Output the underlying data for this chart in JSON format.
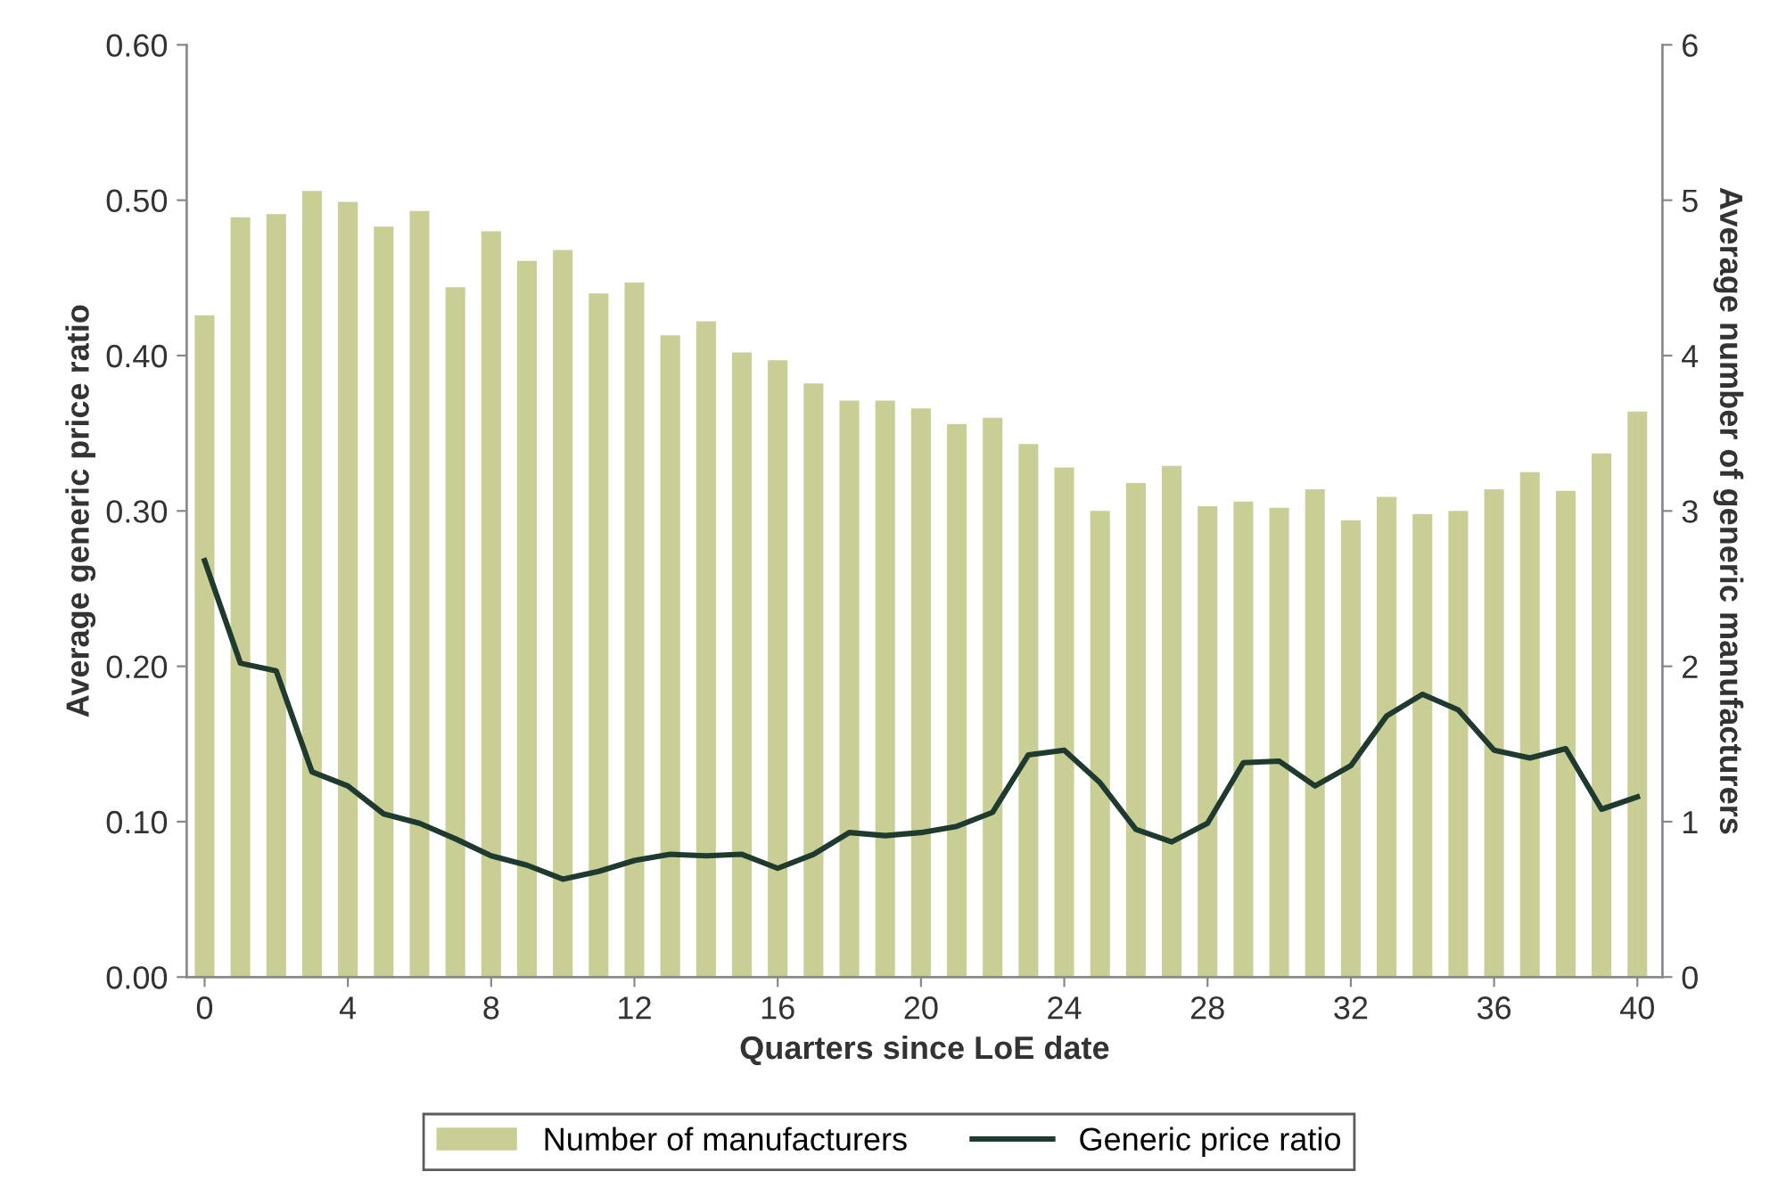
{
  "chart_data": {
    "type": "bar",
    "xlabel": "Quarters since LoE date",
    "ylabel": "Average generic price ratio",
    "y2label": "Average number of generic manufacturers",
    "x": [
      0,
      1,
      2,
      3,
      4,
      5,
      6,
      7,
      8,
      9,
      10,
      11,
      12,
      13,
      14,
      15,
      16,
      17,
      18,
      19,
      20,
      21,
      22,
      23,
      24,
      25,
      26,
      27,
      28,
      29,
      30,
      31,
      32,
      33,
      34,
      35,
      36,
      37,
      38,
      39,
      40
    ],
    "series": [
      {
        "name": "Number of manufacturers",
        "axis": "y2",
        "color": "#c9cf94",
        "values": [
          4.26,
          4.89,
          4.91,
          5.06,
          4.99,
          4.83,
          4.93,
          4.44,
          4.8,
          4.61,
          4.68,
          4.4,
          4.47,
          4.13,
          4.22,
          4.02,
          3.97,
          3.82,
          3.71,
          3.71,
          3.66,
          3.56,
          3.6,
          3.43,
          3.28,
          3.0,
          3.18,
          3.29,
          3.03,
          3.06,
          3.02,
          3.14,
          2.94,
          3.09,
          2.98,
          3.0,
          3.14,
          3.25,
          3.13,
          3.37,
          3.64
        ]
      },
      {
        "name": "Generic price ratio",
        "type": "line",
        "color": "#1f3a2e",
        "values": [
          0.268,
          0.202,
          0.197,
          0.132,
          0.123,
          0.105,
          0.099,
          0.089,
          0.078,
          0.072,
          0.063,
          0.068,
          0.075,
          0.079,
          0.078,
          0.079,
          0.07,
          0.079,
          0.093,
          0.091,
          0.093,
          0.097,
          0.106,
          0.143,
          0.146,
          0.125,
          0.095,
          0.087,
          0.099,
          0.138,
          0.139,
          0.123,
          0.136,
          0.168,
          0.182,
          0.172,
          0.146,
          0.141,
          0.147,
          0.108,
          0.116
        ]
      }
    ],
    "xlim": [
      -0.5,
      40.7
    ],
    "xticks": [
      0,
      4,
      8,
      12,
      16,
      20,
      24,
      28,
      32,
      36,
      40
    ],
    "ylim": [
      0,
      0.6
    ],
    "yticks": [
      {
        "value": 0,
        "label": "0.00"
      },
      {
        "value": 0.1,
        "label": "0.10"
      },
      {
        "value": 0.2,
        "label": "0.20"
      },
      {
        "value": 0.3,
        "label": "0.30"
      },
      {
        "value": 0.4,
        "label": "0.40"
      },
      {
        "value": 0.5,
        "label": "0.50"
      },
      {
        "value": 0.6,
        "label": "0.60"
      }
    ],
    "y2lim": [
      0,
      6
    ],
    "y2ticks": [
      0,
      1,
      2,
      3,
      4,
      5,
      6
    ],
    "legend": "bottom",
    "grid": false,
    "marker": "none",
    "line_style": "solid"
  }
}
